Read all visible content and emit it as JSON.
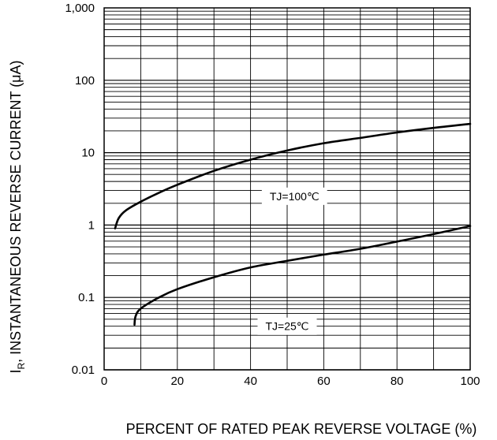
{
  "chart_data": {
    "type": "line",
    "xlabel": "PERCENT OF RATED PEAK REVERSE VOLTAGE (%)",
    "ylabel_main": "I",
    "ylabel_sub": "R",
    "ylabel_rest": ", INSTANTANEOUS REVERSE CURRENT (μA)",
    "x_scale": "linear",
    "y_scale": "log",
    "xlim": [
      0,
      100
    ],
    "ylim": [
      0.01,
      1000
    ],
    "grid": true,
    "x_ticks": [
      {
        "value": 0,
        "label": "0"
      },
      {
        "value": 20,
        "label": "20"
      },
      {
        "value": 40,
        "label": "40"
      },
      {
        "value": 60,
        "label": "60"
      },
      {
        "value": 80,
        "label": "80"
      },
      {
        "value": 100,
        "label": "100"
      }
    ],
    "y_ticks": [
      {
        "value": 0.01,
        "label": "0.01"
      },
      {
        "value": 0.1,
        "label": "0.1"
      },
      {
        "value": 1,
        "label": "1"
      },
      {
        "value": 10,
        "label": "10"
      },
      {
        "value": 100,
        "label": "100"
      },
      {
        "value": 1000,
        "label": "1,000"
      }
    ],
    "series": [
      {
        "name": "TJ=100℃",
        "points": [
          [
            3,
            0.9
          ],
          [
            4,
            1.25
          ],
          [
            6,
            1.6
          ],
          [
            10,
            2.1
          ],
          [
            15,
            2.8
          ],
          [
            20,
            3.6
          ],
          [
            30,
            5.6
          ],
          [
            40,
            8.0
          ],
          [
            50,
            10.7
          ],
          [
            60,
            13.5
          ],
          [
            70,
            16.0
          ],
          [
            80,
            19.0
          ],
          [
            90,
            22.0
          ],
          [
            100,
            25.0
          ]
        ]
      },
      {
        "name": "TJ=25℃",
        "points": [
          [
            8.3,
            0.042
          ],
          [
            8.6,
            0.055
          ],
          [
            10,
            0.07
          ],
          [
            15,
            0.1
          ],
          [
            20,
            0.13
          ],
          [
            30,
            0.19
          ],
          [
            40,
            0.26
          ],
          [
            50,
            0.32
          ],
          [
            60,
            0.39
          ],
          [
            70,
            0.47
          ],
          [
            80,
            0.59
          ],
          [
            90,
            0.75
          ],
          [
            100,
            0.97
          ]
        ]
      }
    ],
    "annotations": [
      {
        "text": "TJ=100℃",
        "x": 52,
        "y": 2.5
      },
      {
        "text": "TJ=25℃",
        "x": 50,
        "y": 0.04
      }
    ]
  }
}
